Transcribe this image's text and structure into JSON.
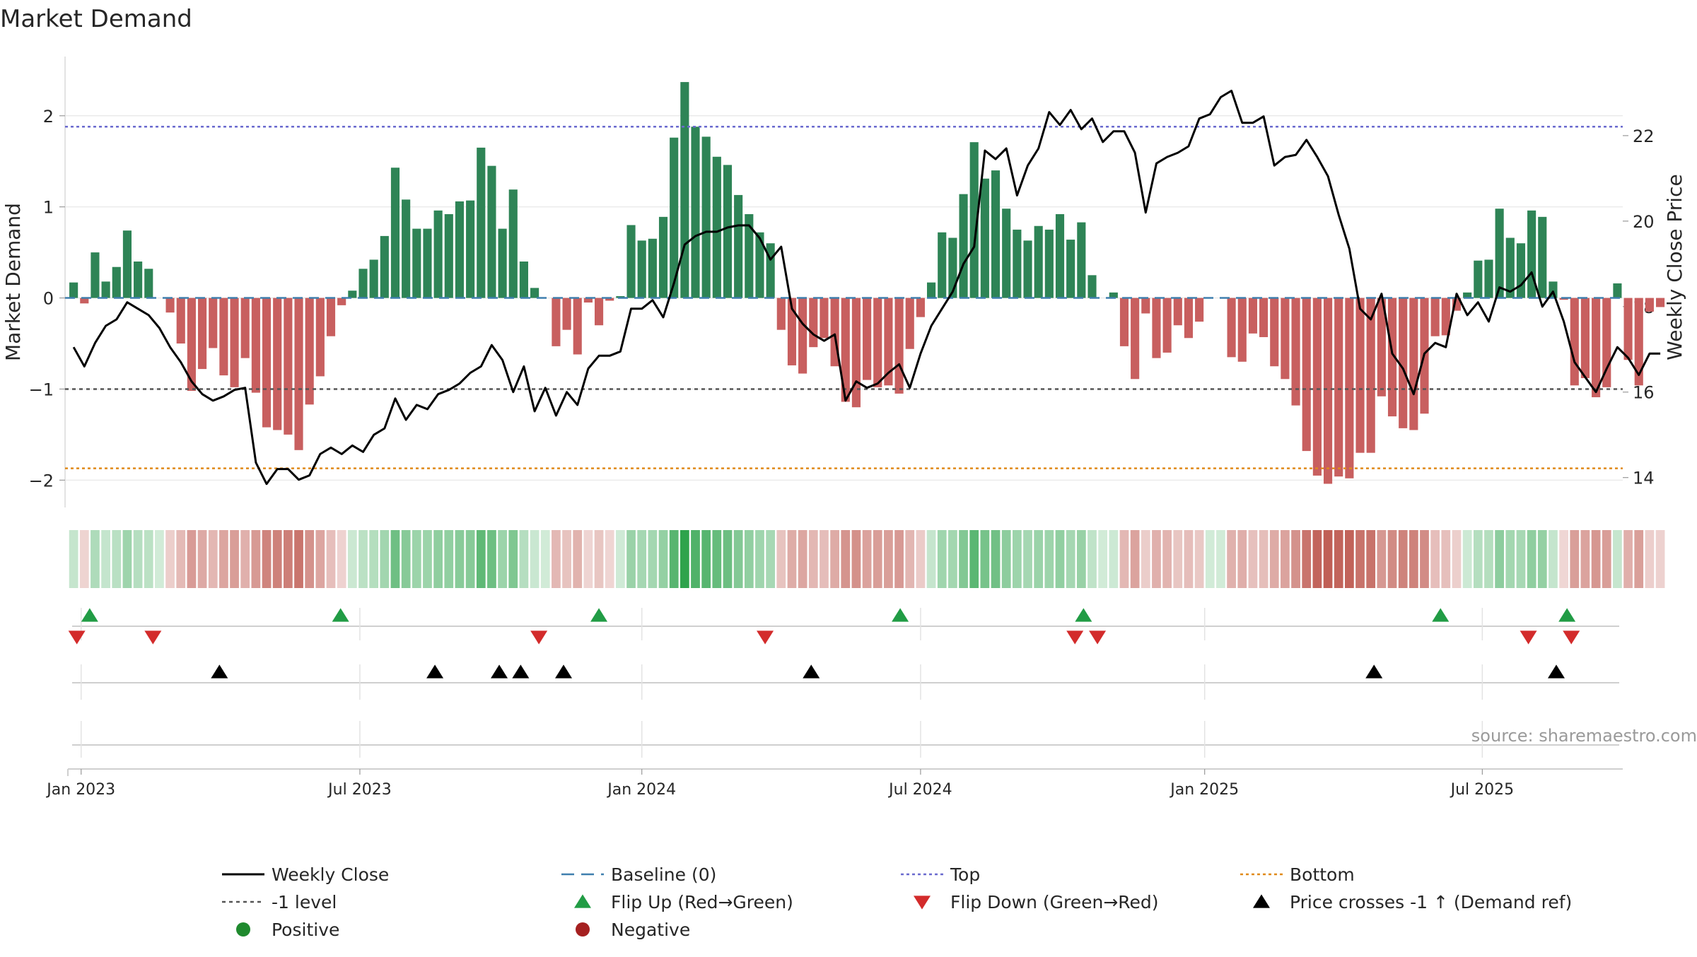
{
  "chart_data": {
    "type": "bar",
    "title": "Market Demand",
    "ylabel_left": "Market Demand",
    "ylabel_right": "Weekly Close Price",
    "source": "source: sharemaestro.com",
    "ylim_left": [
      -2.3,
      2.65
    ],
    "ylim_right": [
      13.3,
      23.85
    ],
    "yticks_left": [
      {
        "value": 2,
        "label": "2"
      },
      {
        "value": 1,
        "label": "1"
      },
      {
        "value": 0,
        "label": "0"
      },
      {
        "value": -1,
        "label": "−1"
      },
      {
        "value": -2,
        "label": "−2"
      }
    ],
    "yticks_right": [
      {
        "value": 22,
        "label": "22"
      },
      {
        "value": 20,
        "label": "20"
      },
      {
        "value": 18,
        "label": "18"
      },
      {
        "value": 16,
        "label": "16"
      },
      {
        "value": 14,
        "label": "14"
      }
    ],
    "x_range_weeks": [
      -0.8,
      144.5
    ],
    "xticks": [
      {
        "week": 0.7,
        "label": "Jan 2023"
      },
      {
        "week": 26.7,
        "label": "Jul 2023"
      },
      {
        "week": 53,
        "label": "Jan 2024"
      },
      {
        "week": 79,
        "label": "Jul 2024"
      },
      {
        "week": 105.5,
        "label": "Jan 2025"
      },
      {
        "week": 131.4,
        "label": "Jul 2025"
      }
    ],
    "reference_lines": {
      "top_value": 1.88,
      "bottom_value": -1.87,
      "minus_one_value": -1,
      "baseline_value": 0
    },
    "demand_values": [
      0.17,
      -0.06,
      0.5,
      0.18,
      0.34,
      0.74,
      0.4,
      0.32,
      0,
      -0.16,
      -0.5,
      -1.02,
      -0.78,
      -0.55,
      -0.85,
      -0.98,
      -0.66,
      -1.04,
      -1.42,
      -1.45,
      -1.5,
      -1.67,
      -1.17,
      -0.86,
      -0.42,
      -0.08,
      0.08,
      0.32,
      0.42,
      0.68,
      1.43,
      1.08,
      0.76,
      0.76,
      0.96,
      0.92,
      1.06,
      1.07,
      1.65,
      1.45,
      0.76,
      1.19,
      0.4,
      0.11,
      0,
      -0.53,
      -0.35,
      -0.62,
      -0.05,
      -0.3,
      -0.03,
      0.02,
      0.8,
      0.63,
      0.65,
      0.89,
      1.76,
      2.37,
      1.88,
      1.77,
      1.55,
      1.46,
      1.13,
      0.92,
      0.72,
      0.6,
      -0.35,
      -0.74,
      -0.83,
      -0.54,
      -0.44,
      -0.75,
      -1.14,
      -1.2,
      -0.9,
      -0.98,
      -0.96,
      -1.05,
      -0.56,
      -0.21,
      0.17,
      0.72,
      0.66,
      1.14,
      1.71,
      1.31,
      1.4,
      0.98,
      0.75,
      0.63,
      0.79,
      0.75,
      0.92,
      0.64,
      0.83,
      0.25,
      0,
      0.06,
      -0.53,
      -0.89,
      -0.17,
      -0.66,
      -0.6,
      -0.3,
      -0.44,
      -0.26,
      0,
      0,
      -0.65,
      -0.7,
      -0.39,
      -0.43,
      -0.75,
      -0.89,
      -1.18,
      -1.68,
      -1.95,
      -2.04,
      -1.96,
      -1.98,
      -1.7,
      -1.7,
      -1.08,
      -1.3,
      -1.43,
      -1.45,
      -1.27,
      -0.42,
      -0.41,
      -0.14,
      0.06,
      0.41,
      0.42,
      0.98,
      0.66,
      0.6,
      0.96,
      0.89,
      0.18,
      -0.02,
      -0.96,
      -0.88,
      -1.09,
      -0.98,
      0.16,
      -0.68,
      -0.96,
      -0.15,
      -0.1
    ],
    "price_series": [
      [
        0,
        17.05
      ],
      [
        1,
        16.6
      ],
      [
        2,
        17.15
      ],
      [
        3,
        17.55
      ],
      [
        4,
        17.7
      ],
      [
        5,
        18.1
      ],
      [
        6,
        17.95
      ],
      [
        7,
        17.8
      ],
      [
        8,
        17.5
      ],
      [
        9,
        17.05
      ],
      [
        10,
        16.7
      ],
      [
        11,
        16.25
      ],
      [
        12,
        15.95
      ],
      [
        13,
        15.8
      ],
      [
        14,
        15.9
      ],
      [
        15,
        16.05
      ],
      [
        16,
        16.1
      ],
      [
        17,
        14.35
      ],
      [
        18,
        13.85
      ],
      [
        19,
        14.2
      ],
      [
        20,
        14.2
      ],
      [
        21,
        13.95
      ],
      [
        22,
        14.05
      ],
      [
        23,
        14.55
      ],
      [
        24,
        14.7
      ],
      [
        25,
        14.55
      ],
      [
        26,
        14.75
      ],
      [
        27,
        14.6
      ],
      [
        28,
        15
      ],
      [
        29,
        15.15
      ],
      [
        30,
        15.85
      ],
      [
        31,
        15.35
      ],
      [
        32,
        15.7
      ],
      [
        33,
        15.6
      ],
      [
        34,
        15.95
      ],
      [
        35,
        16.05
      ],
      [
        36,
        16.2
      ],
      [
        37,
        16.45
      ],
      [
        38,
        16.6
      ],
      [
        39,
        17.1
      ],
      [
        40,
        16.75
      ],
      [
        41,
        16
      ],
      [
        42,
        16.6
      ],
      [
        43,
        15.55
      ],
      [
        44,
        16.1
      ],
      [
        45,
        15.45
      ],
      [
        46,
        16
      ],
      [
        47,
        15.7
      ],
      [
        48,
        16.55
      ],
      [
        49,
        16.85
      ],
      [
        50,
        16.85
      ],
      [
        51,
        16.95
      ],
      [
        52,
        17.95
      ],
      [
        53,
        17.95
      ],
      [
        54,
        18.15
      ],
      [
        55,
        17.75
      ],
      [
        56,
        18.55
      ],
      [
        57,
        19.45
      ],
      [
        58,
        19.65
      ],
      [
        59,
        19.75
      ],
      [
        60,
        19.75
      ],
      [
        61,
        19.85
      ],
      [
        62,
        19.9
      ],
      [
        63,
        19.9
      ],
      [
        64,
        19.6
      ],
      [
        65,
        19.1
      ],
      [
        66,
        19.4
      ],
      [
        67,
        17.95
      ],
      [
        68,
        17.6
      ],
      [
        69,
        17.35
      ],
      [
        70,
        17.2
      ],
      [
        71,
        17.35
      ],
      [
        72,
        15.8
      ],
      [
        73,
        16.25
      ],
      [
        74,
        16.1
      ],
      [
        75,
        16.2
      ],
      [
        76,
        16.45
      ],
      [
        77,
        16.65
      ],
      [
        78,
        16.1
      ],
      [
        79,
        16.9
      ],
      [
        80,
        17.55
      ],
      [
        81,
        17.95
      ],
      [
        82,
        18.35
      ],
      [
        83,
        19
      ],
      [
        84,
        19.4
      ],
      [
        85,
        21.65
      ],
      [
        86,
        21.45
      ],
      [
        87,
        21.7
      ],
      [
        88,
        20.6
      ],
      [
        89,
        21.3
      ],
      [
        90,
        21.7
      ],
      [
        91,
        22.55
      ],
      [
        92,
        22.25
      ],
      [
        93,
        22.6
      ],
      [
        94,
        22.15
      ],
      [
        95,
        22.4
      ],
      [
        96,
        21.85
      ],
      [
        97,
        22.1
      ],
      [
        98,
        22.1
      ],
      [
        99,
        21.6
      ],
      [
        100,
        20.2
      ],
      [
        101,
        21.35
      ],
      [
        102,
        21.5
      ],
      [
        103,
        21.6
      ],
      [
        104,
        21.75
      ],
      [
        105,
        22.4
      ],
      [
        106,
        22.5
      ],
      [
        107,
        22.9
      ],
      [
        108,
        23.05
      ],
      [
        109,
        22.3
      ],
      [
        110,
        22.3
      ],
      [
        111,
        22.45
      ],
      [
        112,
        21.3
      ],
      [
        113,
        21.5
      ],
      [
        114,
        21.55
      ],
      [
        115,
        21.9
      ],
      [
        116,
        21.5
      ],
      [
        117,
        21.05
      ],
      [
        118,
        20.15
      ],
      [
        119,
        19.35
      ],
      [
        120,
        17.95
      ],
      [
        121,
        17.7
      ],
      [
        122,
        18.3
      ],
      [
        123,
        16.9
      ],
      [
        124,
        16.55
      ],
      [
        125,
        15.95
      ],
      [
        126,
        16.9
      ],
      [
        127,
        17.15
      ],
      [
        128,
        17.05
      ],
      [
        129,
        18.3
      ],
      [
        130,
        17.8
      ],
      [
        131,
        18.1
      ],
      [
        132,
        17.65
      ],
      [
        133,
        18.45
      ],
      [
        134,
        18.35
      ],
      [
        135,
        18.5
      ],
      [
        136,
        18.8
      ],
      [
        137,
        18
      ],
      [
        138,
        18.35
      ],
      [
        139,
        17.65
      ],
      [
        140,
        16.7
      ],
      [
        141,
        16.35
      ],
      [
        142,
        16
      ],
      [
        143,
        16.55
      ],
      [
        144,
        17.05
      ],
      [
        145,
        16.8
      ],
      [
        146,
        16.4
      ],
      [
        147,
        16.9
      ],
      [
        148,
        16.9
      ]
    ],
    "flip_up_weeks": [
      1.5,
      24.9,
      49,
      77.1,
      94.2,
      127.5,
      139.3
    ],
    "flip_down_weeks": [
      0.3,
      7.4,
      43.4,
      64.5,
      93.4,
      95.5,
      135.7,
      139.7
    ],
    "price_cross_weeks": [
      13.6,
      33.7,
      39.7,
      41.7,
      45.7,
      68.8,
      121.3,
      138.3
    ],
    "heatmap_scale": {
      "positive_color": "#2ca24a",
      "negative_color": "#b84a40",
      "base_color": "#ffffff"
    },
    "colors": {
      "bar_positive": "#2e8456",
      "bar_negative": "#c85f5f",
      "price_line": "#000000",
      "baseline": "#3f7fae",
      "top_line": "#6a6acf",
      "bottom_line": "#e08a1a",
      "minus_one_line": "#555555",
      "flip_up": "#219c45",
      "flip_down": "#d32b2b",
      "price_cross": "#000000",
      "positive_dot": "#1f8a2e",
      "negative_dot": "#a52020",
      "grid": "#e6e6e6",
      "text": "#262626",
      "source_text": "#9a9a9a"
    },
    "legend": {
      "placement": "bottom",
      "items": [
        {
          "key": "weekly-close",
          "label": "Weekly Close"
        },
        {
          "key": "baseline",
          "label": "Baseline (0)"
        },
        {
          "key": "top",
          "label": "Top"
        },
        {
          "key": "bottom",
          "label": "Bottom"
        },
        {
          "key": "minus-one",
          "label": "-1 level"
        },
        {
          "key": "flip-up",
          "label": "Flip Up (Red→Green)"
        },
        {
          "key": "flip-down",
          "label": "Flip Down (Green→Red)"
        },
        {
          "key": "price-cross",
          "label": "Price crosses -1 ↑ (Demand ref)"
        },
        {
          "key": "positive",
          "label": "Positive"
        },
        {
          "key": "negative",
          "label": "Negative"
        }
      ]
    }
  }
}
